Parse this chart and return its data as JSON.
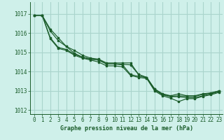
{
  "title": "Graphe pression niveau de la mer (hPa)",
  "bg_color": "#cff0ea",
  "grid_color": "#aad4cc",
  "line_color": "#1a5c2a",
  "xlim": [
    -0.5,
    23.5
  ],
  "ylim": [
    1011.8,
    1017.6
  ],
  "yticks": [
    1012,
    1013,
    1014,
    1015,
    1016,
    1017
  ],
  "xticks": [
    0,
    1,
    2,
    3,
    4,
    5,
    6,
    7,
    8,
    9,
    10,
    11,
    12,
    13,
    14,
    15,
    16,
    17,
    18,
    19,
    20,
    21,
    22,
    23
  ],
  "series": [
    [
      1016.9,
      1016.9,
      1016.2,
      1015.75,
      1015.3,
      1015.1,
      1014.85,
      1014.7,
      1014.65,
      1014.45,
      1014.45,
      1014.45,
      1014.45,
      1013.85,
      1013.7,
      1013.1,
      1012.85,
      1012.75,
      1012.85,
      1012.75,
      1012.75,
      1012.85,
      1012.9,
      1013.0
    ],
    [
      1016.9,
      1016.9,
      1016.1,
      1015.6,
      1015.3,
      1014.95,
      1014.75,
      1014.65,
      1014.6,
      1014.4,
      1014.4,
      1014.38,
      1014.35,
      1013.85,
      1013.7,
      1013.1,
      1012.82,
      1012.72,
      1012.75,
      1012.72,
      1012.72,
      1012.82,
      1012.88,
      1013.0
    ],
    [
      1016.9,
      1016.9,
      1015.75,
      1015.25,
      1015.15,
      1014.9,
      1014.75,
      1014.65,
      1014.6,
      1014.4,
      1014.4,
      1014.35,
      1013.85,
      1013.75,
      1013.7,
      1013.05,
      1012.8,
      1012.7,
      1012.7,
      1012.65,
      1012.65,
      1012.75,
      1012.85,
      1012.95
    ],
    [
      1016.9,
      1016.9,
      1015.7,
      1015.2,
      1015.1,
      1014.85,
      1014.7,
      1014.6,
      1014.5,
      1014.3,
      1014.3,
      1014.25,
      1013.8,
      1013.7,
      1013.65,
      1013.0,
      1012.75,
      1012.62,
      1012.45,
      1012.6,
      1012.6,
      1012.72,
      1012.8,
      1012.92
    ]
  ],
  "tick_fontsize": 5.5,
  "label_fontsize": 6.0
}
